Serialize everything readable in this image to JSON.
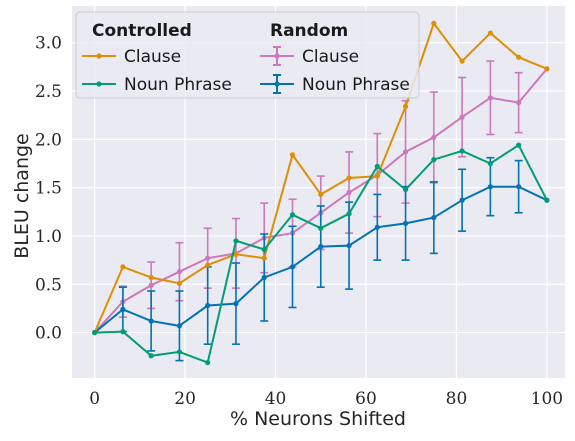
{
  "chart_data": {
    "type": "line",
    "title": "",
    "xlabel": "% Neurons Shifted",
    "ylabel": "BLEU change",
    "xlim": [
      -5,
      104
    ],
    "ylim": [
      -0.47,
      3.38
    ],
    "xticks": [
      0,
      20,
      40,
      60,
      80,
      100
    ],
    "yticks": [
      0.0,
      0.5,
      1.0,
      1.5,
      2.0,
      2.5,
      3.0
    ],
    "xtick_labels": [
      "0",
      "20",
      "40",
      "60",
      "80",
      "100"
    ],
    "ytick_labels": [
      "0.0",
      "0.5",
      "1.0",
      "1.5",
      "2.0",
      "2.5",
      "3.0"
    ],
    "grid": true,
    "legend_position": "top-left",
    "legend_groups": [
      "Controlled",
      "Random"
    ],
    "x": [
      0,
      6.25,
      12.5,
      18.75,
      25,
      31.25,
      37.5,
      43.75,
      50,
      56.25,
      62.5,
      68.75,
      75,
      81.25,
      87.5,
      93.75,
      100
    ],
    "series": [
      {
        "name": "Clause",
        "group": "Controlled",
        "color": "#de8f05",
        "values": [
          0.0,
          0.68,
          0.57,
          0.51,
          0.7,
          0.81,
          0.77,
          1.84,
          1.43,
          1.6,
          1.62,
          2.34,
          3.2,
          2.81,
          3.1,
          2.85,
          2.73
        ]
      },
      {
        "name": "Noun Phrase",
        "group": "Controlled",
        "color": "#029e73",
        "values": [
          0.0,
          0.01,
          -0.24,
          -0.2,
          -0.31,
          0.95,
          0.86,
          1.22,
          1.08,
          1.23,
          1.72,
          1.48,
          1.79,
          1.88,
          1.75,
          1.94,
          1.37
        ]
      },
      {
        "name": "Clause",
        "group": "Random",
        "color": "#cc78bc",
        "values": [
          0.0,
          0.32,
          0.49,
          0.63,
          0.77,
          0.82,
          0.98,
          1.03,
          1.24,
          1.45,
          1.63,
          1.87,
          2.02,
          2.23,
          2.43,
          2.38,
          2.73
        ],
        "errors": [
          0.0,
          0.16,
          0.24,
          0.3,
          0.31,
          0.36,
          0.36,
          0.35,
          0.38,
          0.42,
          0.43,
          0.53,
          0.47,
          0.41,
          0.38,
          0.31,
          0.0
        ]
      },
      {
        "name": "Noun Phrase",
        "group": "Random",
        "color": "#0173b2",
        "values": [
          0.0,
          0.24,
          0.12,
          0.07,
          0.28,
          0.3,
          0.57,
          0.68,
          0.89,
          0.9,
          1.09,
          1.13,
          1.19,
          1.37,
          1.51,
          1.51,
          1.37
        ],
        "errors": [
          0.0,
          0.23,
          0.31,
          0.36,
          0.4,
          0.42,
          0.45,
          0.42,
          0.42,
          0.45,
          0.34,
          0.38,
          0.37,
          0.32,
          0.3,
          0.27,
          0.0
        ]
      }
    ]
  }
}
